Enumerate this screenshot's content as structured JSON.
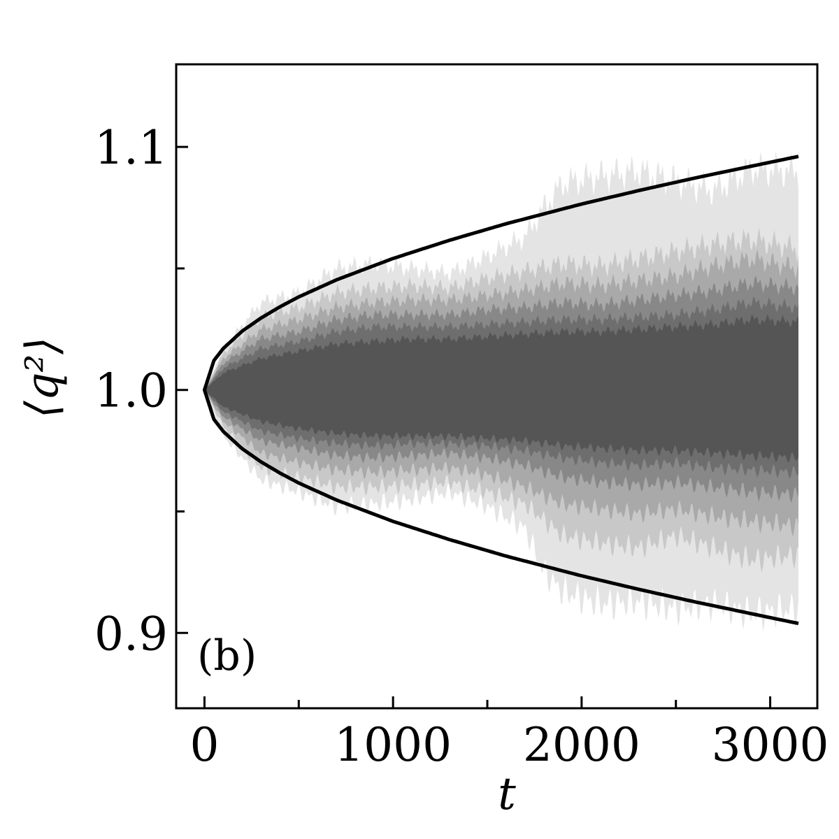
{
  "chart_data": {
    "type": "area",
    "title": "",
    "panel_label": "(b)",
    "xlabel": "t",
    "ylabel": "⟨q²⟩",
    "xlim": [
      -150,
      3250
    ],
    "ylim": [
      0.869,
      1.134
    ],
    "x_ticks_major": [
      0,
      1000,
      2000,
      3000
    ],
    "x_ticks_minor": [
      500,
      1500,
      2500
    ],
    "y_ticks_major": [
      0.9,
      1.0,
      1.1
    ],
    "y_tick_labels": [
      "0.9",
      "1.0",
      "1.1"
    ],
    "y_ticks_minor": [
      0.95,
      1.05
    ],
    "grid": false,
    "legend": "none",
    "envelope": {
      "style": "solid black line",
      "color": "#000000",
      "x": [
        0,
        50,
        100,
        200,
        300,
        400,
        500,
        700,
        1000,
        1300,
        1600,
        2000,
        2300,
        2600,
        3000,
        3150
      ],
      "upper": [
        1.0,
        1.0121,
        1.0171,
        1.0242,
        1.0296,
        1.0342,
        1.0383,
        1.0453,
        1.0541,
        1.0616,
        1.0684,
        1.0765,
        1.082,
        1.0872,
        1.0937,
        1.0961
      ],
      "lower": [
        1.0,
        0.9879,
        0.9829,
        0.9758,
        0.9704,
        0.9658,
        0.9617,
        0.9547,
        0.9459,
        0.9384,
        0.9316,
        0.9235,
        0.918,
        0.9128,
        0.9063,
        0.9039
      ]
    },
    "bands": [
      {
        "color": "#e4e4e4",
        "x": [
          0,
          100,
          300,
          500,
          700,
          900,
          1100,
          1300,
          1500,
          1700,
          1800,
          1900,
          2100,
          2300,
          2500,
          2700,
          2900,
          3150
        ],
        "upper": [
          1.0,
          1.017,
          1.036,
          1.04,
          1.05,
          1.052,
          1.05,
          1.048,
          1.055,
          1.063,
          1.075,
          1.085,
          1.088,
          1.09,
          1.086,
          1.082,
          1.091,
          1.09
        ],
        "lower": [
          1.0,
          0.981,
          0.963,
          0.958,
          0.952,
          0.953,
          0.955,
          0.958,
          0.952,
          0.943,
          0.925,
          0.917,
          0.912,
          0.913,
          0.91,
          0.912,
          0.908,
          0.91
        ]
      },
      {
        "color": "#c8c8c8",
        "x": [
          0,
          100,
          300,
          500,
          700,
          900,
          1100,
          1300,
          1500,
          1700,
          1900,
          2100,
          2300,
          2500,
          2700,
          2900,
          3150
        ],
        "upper": [
          1.0,
          1.015,
          1.03,
          1.034,
          1.04,
          1.042,
          1.043,
          1.042,
          1.046,
          1.049,
          1.052,
          1.051,
          1.054,
          1.057,
          1.06,
          1.062,
          1.058
        ],
        "lower": [
          1.0,
          0.985,
          0.968,
          0.964,
          0.96,
          0.96,
          0.961,
          0.962,
          0.958,
          0.953,
          0.94,
          0.937,
          0.935,
          0.94,
          0.935,
          0.93,
          0.932
        ]
      },
      {
        "color": "#a9a9a9",
        "x": [
          0,
          100,
          300,
          500,
          700,
          900,
          1100,
          1300,
          1500,
          1700,
          1900,
          2100,
          2300,
          2500,
          2700,
          2900,
          3150
        ],
        "upper": [
          1.0,
          1.013,
          1.025,
          1.029,
          1.034,
          1.036,
          1.037,
          1.037,
          1.039,
          1.041,
          1.044,
          1.043,
          1.045,
          1.047,
          1.051,
          1.054,
          1.05
        ],
        "lower": [
          1.0,
          0.987,
          0.974,
          0.97,
          0.967,
          0.966,
          0.967,
          0.968,
          0.965,
          0.96,
          0.953,
          0.951,
          0.949,
          0.951,
          0.948,
          0.946,
          0.944
        ]
      },
      {
        "color": "#888888",
        "x": [
          0,
          100,
          300,
          500,
          700,
          900,
          1100,
          1300,
          1500,
          1700,
          1900,
          2100,
          2300,
          2500,
          2700,
          2900,
          3150
        ],
        "upper": [
          1.0,
          1.011,
          1.021,
          1.024,
          1.029,
          1.031,
          1.031,
          1.031,
          1.033,
          1.034,
          1.036,
          1.035,
          1.037,
          1.039,
          1.041,
          1.044,
          1.042
        ],
        "lower": [
          1.0,
          0.989,
          0.979,
          0.976,
          0.973,
          0.972,
          0.973,
          0.974,
          0.972,
          0.969,
          0.964,
          0.962,
          0.961,
          0.962,
          0.96,
          0.958,
          0.957
        ]
      },
      {
        "color": "#6e6e6e",
        "x": [
          0,
          100,
          300,
          500,
          700,
          900,
          1100,
          1300,
          1500,
          1700,
          1900,
          2100,
          2300,
          2500,
          2700,
          2900,
          3150
        ],
        "upper": [
          1.0,
          1.009,
          1.017,
          1.02,
          1.024,
          1.026,
          1.026,
          1.026,
          1.027,
          1.028,
          1.029,
          1.029,
          1.03,
          1.031,
          1.033,
          1.036,
          1.034
        ],
        "lower": [
          1.0,
          0.991,
          0.983,
          0.98,
          0.978,
          0.977,
          0.978,
          0.978,
          0.977,
          0.975,
          0.972,
          0.97,
          0.969,
          0.97,
          0.968,
          0.967,
          0.966
        ]
      },
      {
        "color": "#555555",
        "x": [
          0,
          100,
          300,
          500,
          700,
          900,
          1100,
          1300,
          1500,
          1700,
          1900,
          2100,
          2300,
          2500,
          2700,
          2900,
          3150
        ],
        "upper": [
          1.0,
          1.007,
          1.013,
          1.016,
          1.019,
          1.02,
          1.021,
          1.021,
          1.022,
          1.023,
          1.024,
          1.024,
          1.025,
          1.026,
          1.027,
          1.029,
          1.028
        ],
        "lower": [
          1.0,
          0.993,
          0.987,
          0.984,
          0.982,
          0.981,
          0.981,
          0.981,
          0.98,
          0.979,
          0.977,
          0.976,
          0.975,
          0.975,
          0.974,
          0.973,
          0.972
        ]
      }
    ]
  }
}
